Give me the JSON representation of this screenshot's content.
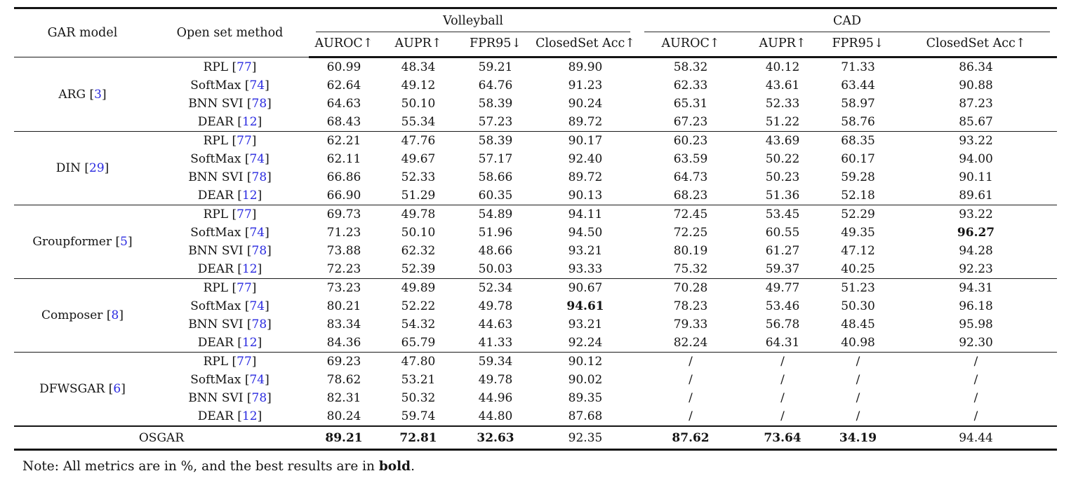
{
  "colors": {
    "citation_blue": "#2a2ae0",
    "text": "#141414",
    "rule": "#141414"
  },
  "table": {
    "header": {
      "gar_model": "GAR model",
      "open_set_method": "Open set method",
      "groups": [
        {
          "label": "Volleyball",
          "metrics": [
            "AUROC↑",
            "AUPR↑",
            "FPR95↓",
            "ClosedSet Acc↑"
          ]
        },
        {
          "label": "CAD",
          "metrics": [
            "AUROC↑",
            "AUPR↑",
            "FPR95↓",
            "ClosedSet Acc↑"
          ]
        }
      ]
    },
    "blocks": [
      {
        "model": "ARG",
        "ref": "3",
        "rows": [
          {
            "method": "RPL",
            "ref": "77",
            "cells": [
              "60.99",
              "48.34",
              "59.21",
              "89.90",
              "58.32",
              "40.12",
              "71.33",
              "86.34"
            ]
          },
          {
            "method": "SoftMax",
            "ref": "74",
            "cells": [
              "62.64",
              "49.12",
              "64.76",
              "91.23",
              "62.33",
              "43.61",
              "63.44",
              "90.88"
            ]
          },
          {
            "method": "BNN SVI",
            "ref": "78",
            "cells": [
              "64.63",
              "50.10",
              "58.39",
              "90.24",
              "65.31",
              "52.33",
              "58.97",
              "87.23"
            ]
          },
          {
            "method": "DEAR",
            "ref": "12",
            "cells": [
              "68.43",
              "55.34",
              "57.23",
              "89.72",
              "67.23",
              "51.22",
              "58.76",
              "85.67"
            ]
          }
        ]
      },
      {
        "model": "DIN",
        "ref": "29",
        "rows": [
          {
            "method": "RPL",
            "ref": "77",
            "cells": [
              "62.21",
              "47.76",
              "58.39",
              "90.17",
              "60.23",
              "43.69",
              "68.35",
              "93.22"
            ]
          },
          {
            "method": "SoftMax",
            "ref": "74",
            "cells": [
              "62.11",
              "49.67",
              "57.17",
              "92.40",
              "63.59",
              "50.22",
              "60.17",
              "94.00"
            ]
          },
          {
            "method": "BNN SVI",
            "ref": "78",
            "cells": [
              "66.86",
              "52.33",
              "58.66",
              "89.72",
              "64.73",
              "50.23",
              "59.28",
              "90.11"
            ]
          },
          {
            "method": "DEAR",
            "ref": "12",
            "cells": [
              "66.90",
              "51.29",
              "60.35",
              "90.13",
              "68.23",
              "51.36",
              "52.18",
              "89.61"
            ]
          }
        ]
      },
      {
        "model": "Groupformer",
        "ref": "5",
        "rows": [
          {
            "method": "RPL",
            "ref": "77",
            "cells": [
              "69.73",
              "49.78",
              "54.89",
              "94.11",
              "72.45",
              "53.45",
              "52.29",
              "93.22"
            ]
          },
          {
            "method": "SoftMax",
            "ref": "74",
            "cells": [
              "71.23",
              "50.10",
              "51.96",
              "94.50",
              "72.25",
              "60.55",
              "49.35",
              "96.27"
            ],
            "bold": [
              7
            ]
          },
          {
            "method": "BNN SVI",
            "ref": "78",
            "cells": [
              "73.88",
              "62.32",
              "48.66",
              "93.21",
              "80.19",
              "61.27",
              "47.12",
              "94.28"
            ]
          },
          {
            "method": "DEAR",
            "ref": "12",
            "cells": [
              "72.23",
              "52.39",
              "50.03",
              "93.33",
              "75.32",
              "59.37",
              "40.25",
              "92.23"
            ]
          }
        ]
      },
      {
        "model": "Composer",
        "ref": "8",
        "rows": [
          {
            "method": "RPL",
            "ref": "77",
            "cells": [
              "73.23",
              "49.89",
              "52.34",
              "90.67",
              "70.28",
              "49.77",
              "51.23",
              "94.31"
            ]
          },
          {
            "method": "SoftMax",
            "ref": "74",
            "cells": [
              "80.21",
              "52.22",
              "49.78",
              "94.61",
              "78.23",
              "53.46",
              "50.30",
              "96.18"
            ],
            "bold": [
              3
            ]
          },
          {
            "method": "BNN SVI",
            "ref": "78",
            "cells": [
              "83.34",
              "54.32",
              "44.63",
              "93.21",
              "79.33",
              "56.78",
              "48.45",
              "95.98"
            ]
          },
          {
            "method": "DEAR",
            "ref": "12",
            "cells": [
              "84.36",
              "65.79",
              "41.33",
              "92.24",
              "82.24",
              "64.31",
              "40.98",
              "92.30"
            ]
          }
        ]
      },
      {
        "model": "DFWSGAR",
        "ref": "6",
        "rows": [
          {
            "method": "RPL",
            "ref": "77",
            "cells": [
              "69.23",
              "47.80",
              "59.34",
              "90.12",
              "/",
              "/",
              "/",
              "/"
            ]
          },
          {
            "method": "SoftMax",
            "ref": "74",
            "cells": [
              "78.62",
              "53.21",
              "49.78",
              "90.02",
              "/",
              "/",
              "/",
              "/"
            ]
          },
          {
            "method": "BNN SVI",
            "ref": "78",
            "cells": [
              "82.31",
              "50.32",
              "44.96",
              "89.35",
              "/",
              "/",
              "/",
              "/"
            ]
          },
          {
            "method": "DEAR",
            "ref": "12",
            "cells": [
              "80.24",
              "59.74",
              "44.80",
              "87.68",
              "/",
              "/",
              "/",
              "/"
            ]
          }
        ]
      }
    ],
    "footer": {
      "label": "OSGAR",
      "cells": [
        "89.21",
        "72.81",
        "32.63",
        "92.35",
        "87.62",
        "73.64",
        "34.19",
        "94.44"
      ],
      "bold_indices": [
        0,
        1,
        2,
        4,
        5,
        6
      ]
    },
    "note": {
      "prefix": "Note: All metrics are in %, and the best results are in ",
      "bold_word": "bold",
      "suffix": "."
    }
  }
}
